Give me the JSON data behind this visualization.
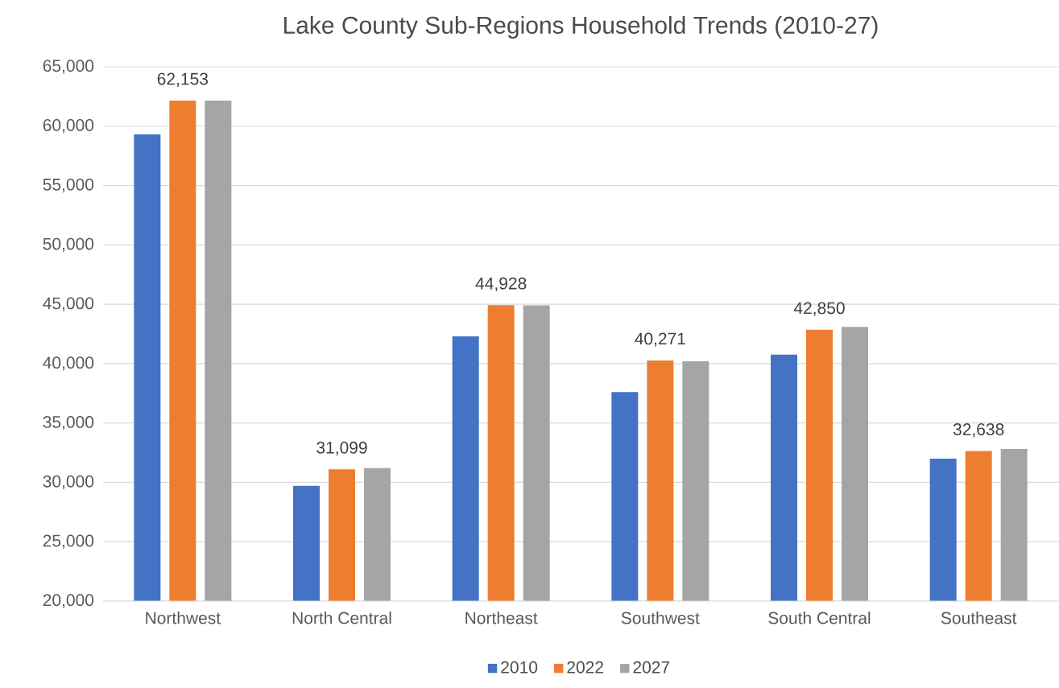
{
  "chart_data": {
    "type": "bar",
    "title": "Lake County Sub-Regions  Household Trends (2010-27)",
    "categories": [
      "Northwest",
      "North Central",
      "Northeast",
      "Southwest",
      "South Central",
      "Southeast"
    ],
    "series": [
      {
        "name": "2010",
        "color": "#4472c4",
        "values": [
          59300,
          29700,
          42300,
          37600,
          40750,
          32000
        ]
      },
      {
        "name": "2022",
        "color": "#ed7d31",
        "values": [
          62153,
          31099,
          44928,
          40271,
          42850,
          32638
        ],
        "value_labels": [
          "62,153",
          "31,099",
          "44,928",
          "40,271",
          "42,850",
          "32,638"
        ]
      },
      {
        "name": "2027",
        "color": "#a5a5a5",
        "values": [
          62150,
          31200,
          44900,
          40200,
          43100,
          32800
        ]
      }
    ],
    "ylim": [
      20000,
      65000
    ],
    "yticks": [
      {
        "value": 20000,
        "label": "20,000"
      },
      {
        "value": 25000,
        "label": "25,000"
      },
      {
        "value": 30000,
        "label": "30,000"
      },
      {
        "value": 35000,
        "label": "35,000"
      },
      {
        "value": 40000,
        "label": "40,000"
      },
      {
        "value": 45000,
        "label": "45,000"
      },
      {
        "value": 50000,
        "label": "50,000"
      },
      {
        "value": 55000,
        "label": "55,000"
      },
      {
        "value": 60000,
        "label": "60,000"
      },
      {
        "value": 65000,
        "label": "65,000"
      }
    ],
    "grid": "y",
    "legend": "bottom"
  }
}
